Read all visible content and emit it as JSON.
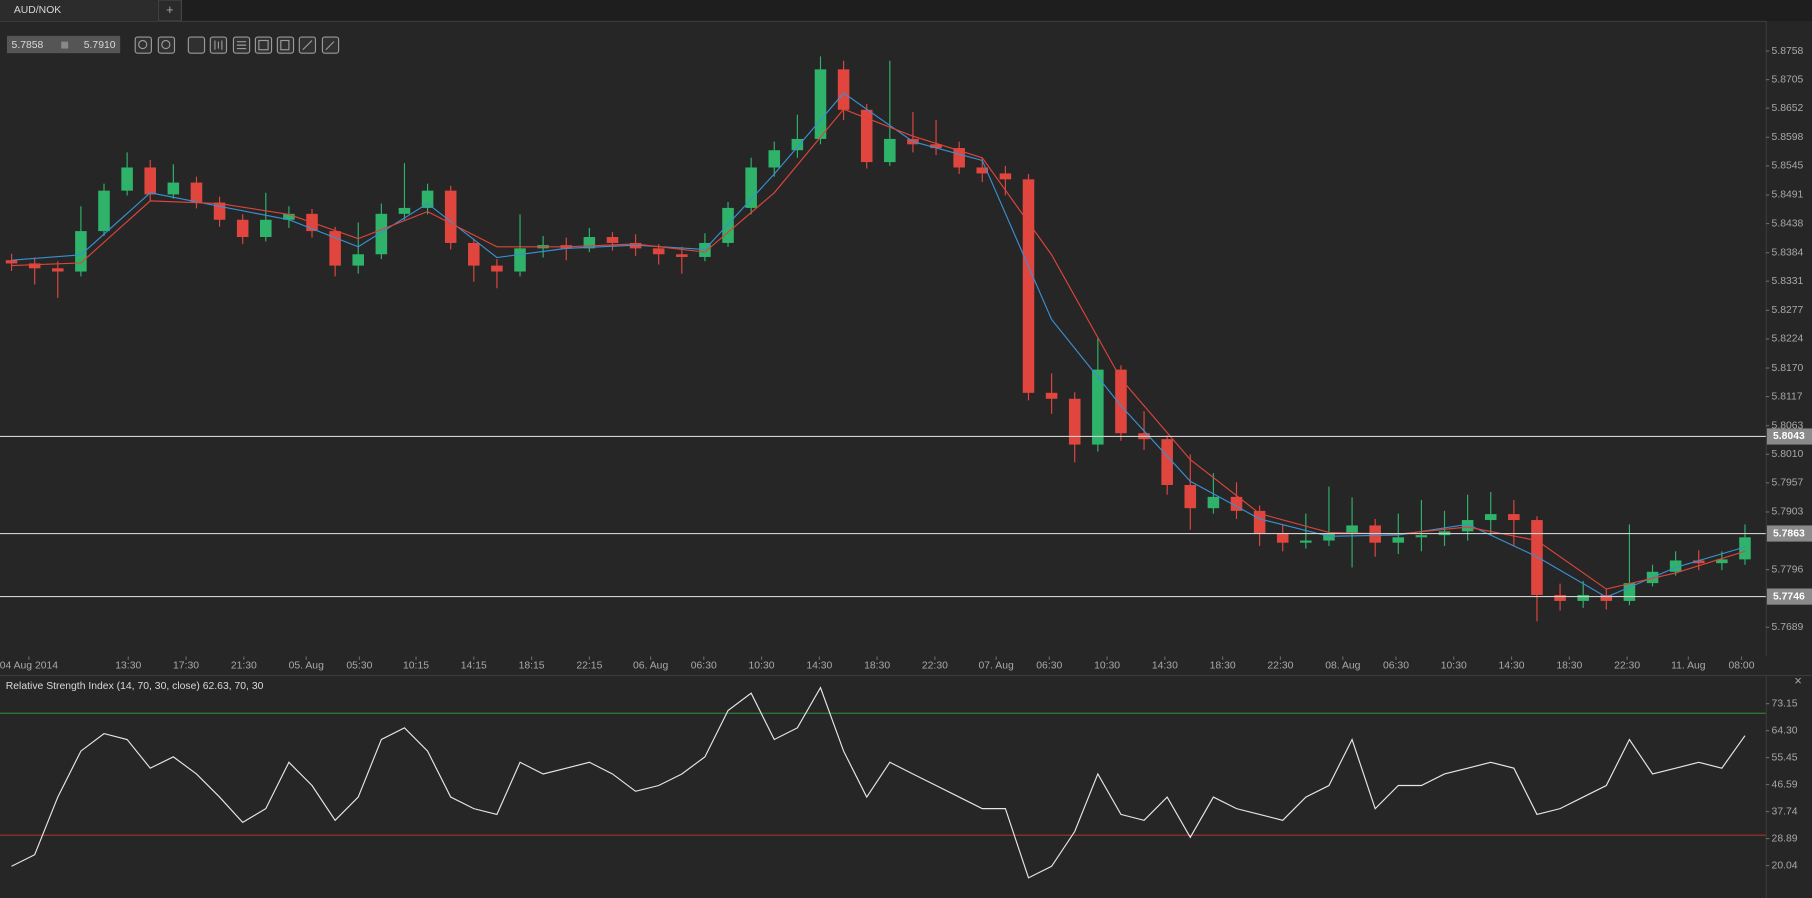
{
  "tab": "AUD/NOK",
  "new_tab": "+",
  "quote": {
    "bid": "5.7858",
    "ask": "5.7910"
  },
  "close_pane": "×",
  "chart_data": [
    {
      "type": "candlestick",
      "up_color": "#2fb36a",
      "down_color": "#e0463e",
      "xlim": [
        -0.5,
        75.9
      ],
      "ylim": [
        5.7635,
        5.8814
      ],
      "open": [
        5.837,
        5.8364,
        5.8355,
        5.8349,
        5.8424,
        5.8499,
        5.8542,
        5.8492,
        5.8514,
        5.8477,
        5.8445,
        5.8413,
        5.8445,
        5.8456,
        5.8424,
        5.836,
        5.8381,
        5.8456,
        5.8467,
        5.8499,
        5.8402,
        5.836,
        5.8349,
        5.8392,
        5.8398,
        5.8392,
        5.8413,
        5.8402,
        5.8392,
        5.8381,
        5.8376,
        5.8402,
        5.8467,
        5.8542,
        5.8574,
        5.8595,
        5.8724,
        5.8649,
        5.8552,
        5.8595,
        5.8585,
        5.8578,
        5.8542,
        5.8531,
        5.852,
        5.8124,
        5.8113,
        5.8028,
        5.8167,
        5.8049,
        5.8038,
        5.7953,
        5.791,
        5.7931,
        5.7905,
        5.7863,
        5.7846,
        5.785,
        5.7863,
        5.7878,
        5.7846,
        5.7856,
        5.786,
        5.7867,
        5.7888,
        5.7899,
        5.7888,
        5.7749,
        5.7738,
        5.7749,
        5.7738,
        5.7771,
        5.7792,
        5.7813,
        5.7808,
        5.7815
      ],
      "high": [
        5.8382,
        5.8375,
        5.8368,
        5.847,
        5.8512,
        5.857,
        5.8556,
        5.8548,
        5.8525,
        5.8488,
        5.8455,
        5.8495,
        5.847,
        5.8465,
        5.8432,
        5.844,
        5.8475,
        5.855,
        5.8512,
        5.8508,
        5.841,
        5.8372,
        5.8455,
        5.8415,
        5.8412,
        5.843,
        5.8422,
        5.8418,
        5.84,
        5.8395,
        5.842,
        5.8478,
        5.856,
        5.859,
        5.864,
        5.8748,
        5.874,
        5.866,
        5.874,
        5.8645,
        5.863,
        5.859,
        5.856,
        5.8545,
        5.853,
        5.816,
        5.8125,
        5.8225,
        5.8175,
        5.809,
        5.8045,
        5.801,
        5.7975,
        5.7958,
        5.7915,
        5.788,
        5.79,
        5.795,
        5.793,
        5.789,
        5.79,
        5.7925,
        5.7905,
        5.7935,
        5.794,
        5.7925,
        5.7895,
        5.777,
        5.7775,
        5.776,
        5.788,
        5.7805,
        5.783,
        5.7832,
        5.783,
        5.788
      ],
      "low": [
        5.835,
        5.8325,
        5.83,
        5.834,
        5.8415,
        5.849,
        5.848,
        5.8484,
        5.8466,
        5.8432,
        5.84,
        5.8405,
        5.843,
        5.8412,
        5.834,
        5.8345,
        5.8372,
        5.8445,
        5.8455,
        5.839,
        5.833,
        5.8318,
        5.834,
        5.8375,
        5.837,
        5.8385,
        5.8388,
        5.8378,
        5.8362,
        5.8345,
        5.8368,
        5.8395,
        5.8455,
        5.8525,
        5.856,
        5.8585,
        5.863,
        5.854,
        5.8545,
        5.857,
        5.8565,
        5.853,
        5.8515,
        5.849,
        5.811,
        5.8085,
        5.7995,
        5.8015,
        5.8035,
        5.8018,
        5.7935,
        5.787,
        5.79,
        5.789,
        5.784,
        5.783,
        5.7835,
        5.784,
        5.78,
        5.782,
        5.7825,
        5.783,
        5.784,
        5.785,
        5.786,
        5.784,
        5.77,
        5.772,
        5.7725,
        5.7722,
        5.773,
        5.7765,
        5.7785,
        5.7795,
        5.7795,
        5.7805
      ],
      "close": [
        5.8364,
        5.8355,
        5.8349,
        5.8424,
        5.8499,
        5.8542,
        5.8492,
        5.8514,
        5.8477,
        5.8445,
        5.8413,
        5.8445,
        5.8456,
        5.8424,
        5.836,
        5.8381,
        5.8456,
        5.8467,
        5.8499,
        5.8402,
        5.836,
        5.8349,
        5.8392,
        5.8398,
        5.8392,
        5.8413,
        5.8402,
        5.8392,
        5.8381,
        5.8376,
        5.8402,
        5.8467,
        5.8542,
        5.8574,
        5.8595,
        5.8724,
        5.8649,
        5.8552,
        5.8595,
        5.8585,
        5.8578,
        5.8542,
        5.8531,
        5.852,
        5.8124,
        5.8113,
        5.8028,
        5.8167,
        5.8049,
        5.8038,
        5.7953,
        5.791,
        5.7931,
        5.7905,
        5.7863,
        5.7846,
        5.785,
        5.7863,
        5.7878,
        5.7846,
        5.7856,
        5.786,
        5.7867,
        5.7888,
        5.7899,
        5.7888,
        5.7749,
        5.7738,
        5.7749,
        5.7738,
        5.7771,
        5.7792,
        5.7813,
        5.7808,
        5.7815,
        5.7856
      ],
      "overlays": [
        {
          "color": "#3a8fd0",
          "x": [
            0,
            3,
            6,
            9,
            12,
            15,
            18,
            21,
            24,
            27,
            30,
            33,
            36,
            39,
            42,
            45,
            48,
            51,
            54,
            57,
            60,
            63,
            66,
            69,
            72,
            75
          ],
          "values": [
            5.837,
            5.838,
            5.8495,
            5.847,
            5.8445,
            5.8395,
            5.8475,
            5.8375,
            5.8392,
            5.8398,
            5.839,
            5.853,
            5.868,
            5.859,
            5.8555,
            5.826,
            5.81,
            5.796,
            5.789,
            5.7858,
            5.786,
            5.788,
            5.782,
            5.7745,
            5.78,
            5.7838
          ]
        },
        {
          "color": "#d9453c",
          "x": [
            0,
            3,
            6,
            9,
            12,
            15,
            18,
            21,
            24,
            27,
            30,
            33,
            36,
            39,
            42,
            45,
            48,
            51,
            54,
            57,
            60,
            63,
            66,
            69,
            72,
            75
          ],
          "values": [
            5.836,
            5.8365,
            5.848,
            5.8475,
            5.8455,
            5.841,
            5.846,
            5.8395,
            5.8395,
            5.84,
            5.8385,
            5.8495,
            5.865,
            5.86,
            5.856,
            5.838,
            5.815,
            5.8,
            5.79,
            5.7865,
            5.7862,
            5.7875,
            5.785,
            5.776,
            5.779,
            5.783
          ]
        }
      ],
      "levels": [
        5.8043,
        5.7863,
        5.7746
      ],
      "level_colors": [
        "#8a8a8a",
        "#8a8a8a",
        "#8a8a8a"
      ],
      "yticks": [
        5.8758,
        5.8705,
        5.8652,
        5.8598,
        5.8545,
        5.8491,
        5.8438,
        5.8384,
        5.8331,
        5.8277,
        5.8224,
        {
          "value": 5.817,
          "label": "5.8170"
        },
        5.8117,
        5.8063,
        {
          "value": 5.801,
          "label": "5.8010"
        },
        5.7957,
        5.7903,
        5.7796,
        5.7689
      ],
      "xticks": [
        {
          "value": 0.75,
          "label": "04 Aug 2014"
        },
        {
          "value": 5.05,
          "label": "13:30"
        },
        {
          "value": 7.55,
          "label": "17:30"
        },
        {
          "value": 10.05,
          "label": "21:30"
        },
        {
          "value": 12.75,
          "label": "05. Aug"
        },
        {
          "value": 15.05,
          "label": "05:30"
        },
        {
          "value": 17.5,
          "label": "10:15"
        },
        {
          "value": 20,
          "label": "14:15"
        },
        {
          "value": 22.5,
          "label": "18:15"
        },
        {
          "value": 25,
          "label": "22:15"
        },
        {
          "value": 27.65,
          "label": "06. Aug"
        },
        {
          "value": 29.95,
          "label": "06:30"
        },
        {
          "value": 32.45,
          "label": "10:30"
        },
        {
          "value": 34.95,
          "label": "14:30"
        },
        {
          "value": 37.45,
          "label": "18:30"
        },
        {
          "value": 39.95,
          "label": "22:30"
        },
        {
          "value": 42.6,
          "label": "07. Aug"
        },
        {
          "value": 44.9,
          "label": "06:30"
        },
        {
          "value": 47.4,
          "label": "10:30"
        },
        {
          "value": 49.9,
          "label": "14:30"
        },
        {
          "value": 52.4,
          "label": "18:30"
        },
        {
          "value": 54.9,
          "label": "22:30"
        },
        {
          "value": 57.6,
          "label": "08. Aug"
        },
        {
          "value": 59.9,
          "label": "06:30"
        },
        {
          "value": 62.4,
          "label": "10:30"
        },
        {
          "value": 64.9,
          "label": "14:30"
        },
        {
          "value": 67.4,
          "label": "18:30"
        },
        {
          "value": 69.9,
          "label": "22:30"
        },
        {
          "value": 72.55,
          "label": "11. Aug"
        },
        {
          "value": 74.85,
          "label": "08:00"
        }
      ]
    },
    {
      "type": "line",
      "title": "Relative Strength Index (14, 70, 30, close) 62.63, 70, 30",
      "color": "#e6e6e6",
      "xlim": [
        -0.5,
        75.9
      ],
      "ylim": [
        11.3,
        82.2
      ],
      "values": [
        19.8,
        23.6,
        42.5,
        57.6,
        63.3,
        61.4,
        52.0,
        55.7,
        50.1,
        42.5,
        34.2,
        38.7,
        53.9,
        46.3,
        34.9,
        42.5,
        61.4,
        65.2,
        57.6,
        42.5,
        38.7,
        36.8,
        53.9,
        50.1,
        52.0,
        53.9,
        50.1,
        44.4,
        46.3,
        50.1,
        55.7,
        70.9,
        76.6,
        61.4,
        65.2,
        78.4,
        57.6,
        42.5,
        53.9,
        50.1,
        46.3,
        42.5,
        38.7,
        38.7,
        16.0,
        19.8,
        31.2,
        50.1,
        36.8,
        34.9,
        42.5,
        29.3,
        42.5,
        38.7,
        36.8,
        34.9,
        42.5,
        46.3,
        61.4,
        38.7,
        46.3,
        46.3,
        50.1,
        52.0,
        53.9,
        52.0,
        36.8,
        38.7,
        42.5,
        46.3,
        61.4,
        50.1,
        52.0,
        53.9,
        52.0,
        62.63
      ],
      "levels": [
        70,
        30
      ],
      "level_colors": [
        "#2f7d3a",
        "#a0342e"
      ],
      "yticks": [
        73.15,
        {
          "value": 64.3,
          "label": "64.30"
        },
        55.45,
        46.59,
        37.74,
        28.89,
        20.04
      ]
    }
  ]
}
